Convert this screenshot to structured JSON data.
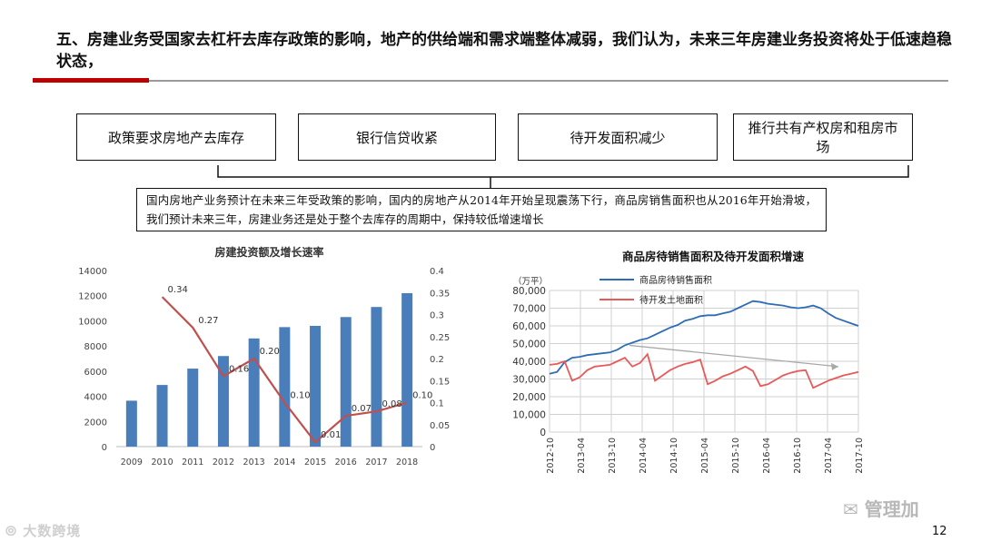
{
  "slide": {
    "title": "五、房建业务受国家去杠杆去库存政策的影响，地产的供给端和需求端整体减弱，我们认为，未来三年房建业务投资将处于低速趋稳状态，",
    "factors": [
      "政策要求房地产去库存",
      "银行信贷收紧",
      "待开发面积减少",
      "推行共有产权房和租房市场"
    ],
    "summary": "国内房地产业务预计在未来三年受政策的影响，国内的房地产从2014年开始呈现震荡下行，商品房销售面积也从2016年开始滑坡，我们预计未来三年，房建业务还是处于整个去库存的周期中，保持较低增速增长",
    "page_number": "12",
    "watermark_left": "大数跨境",
    "watermark_right": "管理加",
    "colors": {
      "accent_red": "#c00000",
      "bar_blue": "#4a7ebb",
      "line_red": "#c0504d",
      "line_blue": "#2e6db4",
      "line_salmon": "#e8595a"
    }
  },
  "chart_data": [
    {
      "type": "bar",
      "title": "房建投资额及增长速率",
      "categories": [
        "2009",
        "2010",
        "2011",
        "2012",
        "2013",
        "2014",
        "2015",
        "2016",
        "2017",
        "2018"
      ],
      "series": [
        {
          "values": [
            3650,
            4900,
            6200,
            7200,
            8600,
            9500,
            9600,
            10300,
            11100,
            12200
          ],
          "axis": "left"
        },
        {
          "values": [
            null,
            0.34,
            0.27,
            0.16,
            0.2,
            0.1,
            0.01,
            0.07,
            0.08,
            0.1
          ],
          "axis": "right",
          "labels": [
            "",
            "0.34",
            "0.27",
            "0.16",
            "0.20",
            "0.10",
            "0.01",
            "0.07",
            "0.08",
            "0.10"
          ]
        }
      ],
      "ylim_left": [
        0,
        14000
      ],
      "yticks_left": [
        "0",
        "2000",
        "4000",
        "6000",
        "8000",
        "10000",
        "12000",
        "14000"
      ],
      "ylim_right": [
        0,
        0.4
      ],
      "yticks_right": [
        "0",
        "0.05",
        "0.1",
        "0.15",
        "0.2",
        "0.25",
        "0.3",
        "0.35",
        "0.4"
      ],
      "grid": false
    },
    {
      "type": "line",
      "title": "商品房待销售面积及待开发面积增速",
      "ylabel": "（万平）",
      "ylim": [
        0,
        80000
      ],
      "yticks": [
        "0",
        "10,000",
        "20,000",
        "30,000",
        "40,000",
        "50,000",
        "60,000",
        "70,000",
        "80,000"
      ],
      "xticks": [
        "2012-10",
        "2013-04",
        "2013-10",
        "2014-04",
        "2014-10",
        "2015-04",
        "2015-10",
        "2016-04",
        "2016-10",
        "2017-04",
        "2017-10"
      ],
      "legend_position": "top",
      "grid": true,
      "series": [
        {
          "name": "商品房待销售面积",
          "values": [
            33000,
            34000,
            39500,
            42000,
            42500,
            43500,
            44000,
            44500,
            45000,
            46500,
            49000,
            50500,
            52000,
            53000,
            55000,
            57000,
            59000,
            60500,
            63000,
            64000,
            65500,
            66000,
            66000,
            67000,
            68000,
            70000,
            72000,
            74000,
            73500,
            72500,
            72000,
            71500,
            70500,
            70000,
            70500,
            71500,
            70000,
            67000,
            64500,
            63000,
            61500,
            60000
          ]
        },
        {
          "name": "待开发土地面积",
          "values": [
            38000,
            38500,
            40000,
            29000,
            31000,
            35000,
            37000,
            37500,
            38000,
            40000,
            42000,
            37000,
            39000,
            44000,
            29000,
            32000,
            35000,
            37000,
            38500,
            39500,
            41000,
            27000,
            29000,
            31500,
            33000,
            35000,
            37000,
            34500,
            26000,
            27000,
            29500,
            32000,
            33500,
            34500,
            35000,
            25000,
            27000,
            29000,
            30500,
            32000,
            33000,
            34000
          ]
        }
      ],
      "annotation": "trend-arrow"
    }
  ]
}
